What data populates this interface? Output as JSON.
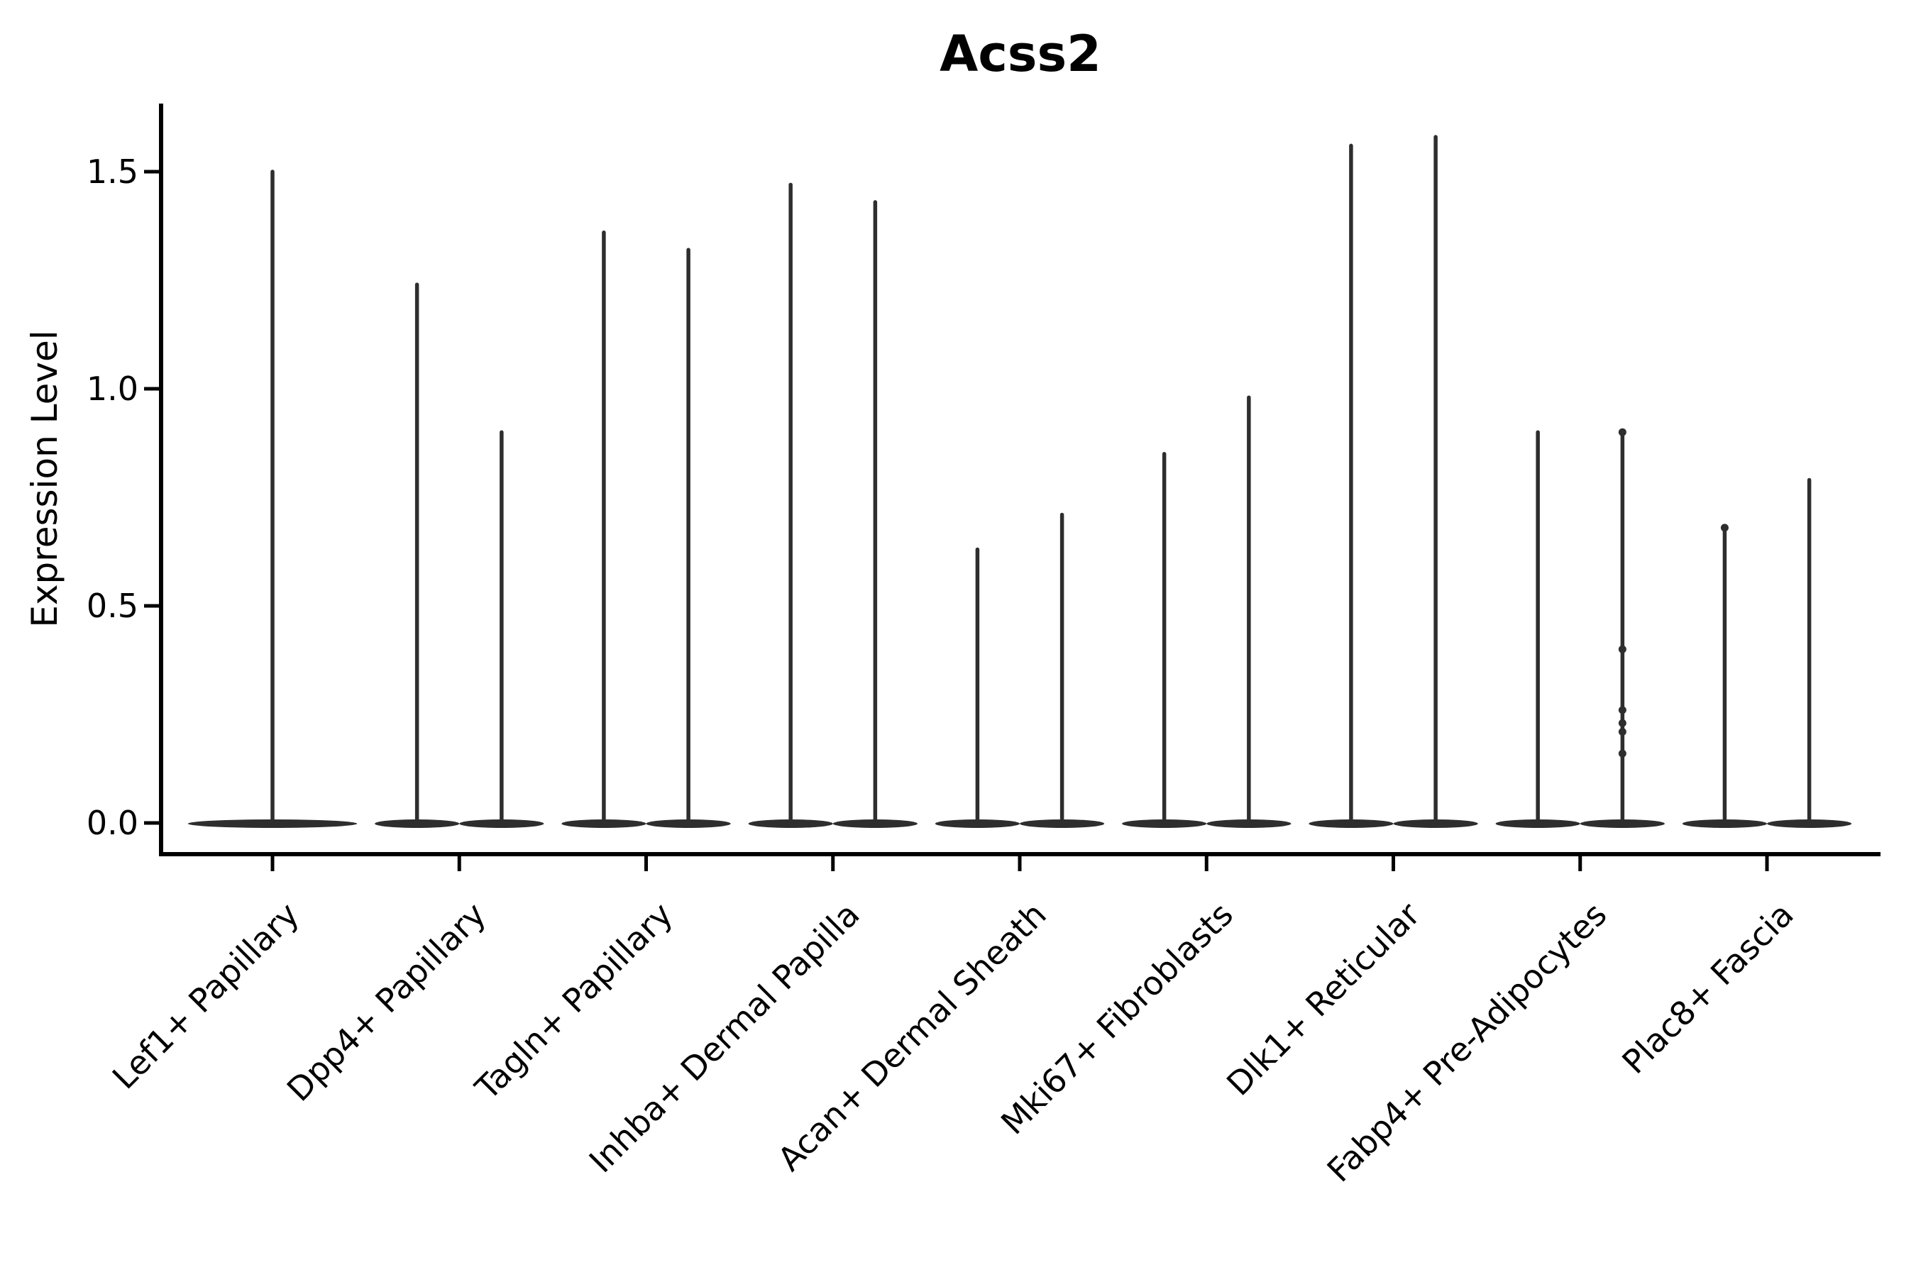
{
  "page": {
    "background": "#ffffff"
  },
  "chart_data": {
    "type": "violin",
    "title": "Acss2",
    "ylabel": "Expression Level",
    "xlabel": "",
    "ytick_labels": [
      "0.0",
      "0.5",
      "1.0",
      "1.5"
    ],
    "ytick_values": [
      0.0,
      0.5,
      1.0,
      1.5
    ],
    "ylim": [
      -0.07,
      1.66
    ],
    "grid": false,
    "legend": null,
    "x_tick_rotation_deg": 45,
    "violin_color": "#2e2e2e",
    "axis_color": "#000000",
    "categories": [
      "Lef1+ Papillary",
      "Dpp4+ Papillary",
      "Tagln+ Papillary",
      "Inhba+ Dermal Papilla",
      "Acan+ Dermal Sheath",
      "Mki67+ Fibroblasts",
      "Dlk1+ Reticular",
      "Fabp4+ Pre-Adipocytes",
      "Plac8+ Fascia"
    ],
    "violins": [
      {
        "category": "Lef1+ Papillary",
        "maxima": [
          1.5
        ],
        "points": []
      },
      {
        "category": "Dpp4+ Papillary",
        "maxima": [
          1.24,
          0.9
        ],
        "points": []
      },
      {
        "category": "Tagln+ Papillary",
        "maxima": [
          1.36,
          1.32
        ],
        "points": []
      },
      {
        "category": "Inhba+ Dermal Papilla",
        "maxima": [
          1.47,
          1.43
        ],
        "points": []
      },
      {
        "category": "Acan+ Dermal Sheath",
        "maxima": [
          0.63,
          0.71
        ],
        "points": []
      },
      {
        "category": "Mki67+ Fibroblasts",
        "maxima": [
          0.85,
          0.98
        ],
        "points": []
      },
      {
        "category": "Dlk1+ Reticular",
        "maxima": [
          1.56,
          1.58
        ],
        "points": []
      },
      {
        "category": "Fabp4+ Pre-Adipocytes",
        "maxima": [
          0.9,
          0.9
        ],
        "points": [
          [
            1,
            0.9
          ],
          [
            1,
            0.4
          ],
          [
            1,
            0.26
          ],
          [
            1,
            0.23
          ],
          [
            1,
            0.21
          ],
          [
            1,
            0.16
          ]
        ]
      },
      {
        "category": "Plac8+ Fascia",
        "maxima": [
          0.68,
          0.79
        ],
        "points": [
          [
            0,
            0.68
          ]
        ]
      }
    ],
    "shape_note": "Each violin is bottom-heavy: a wide flat lens of density at expression 0 plus a thin vertical spike up to the maximum value. Categories with two violins have them side by side with touching bases; Lef1+ Papillary has a single full-width violin."
  }
}
